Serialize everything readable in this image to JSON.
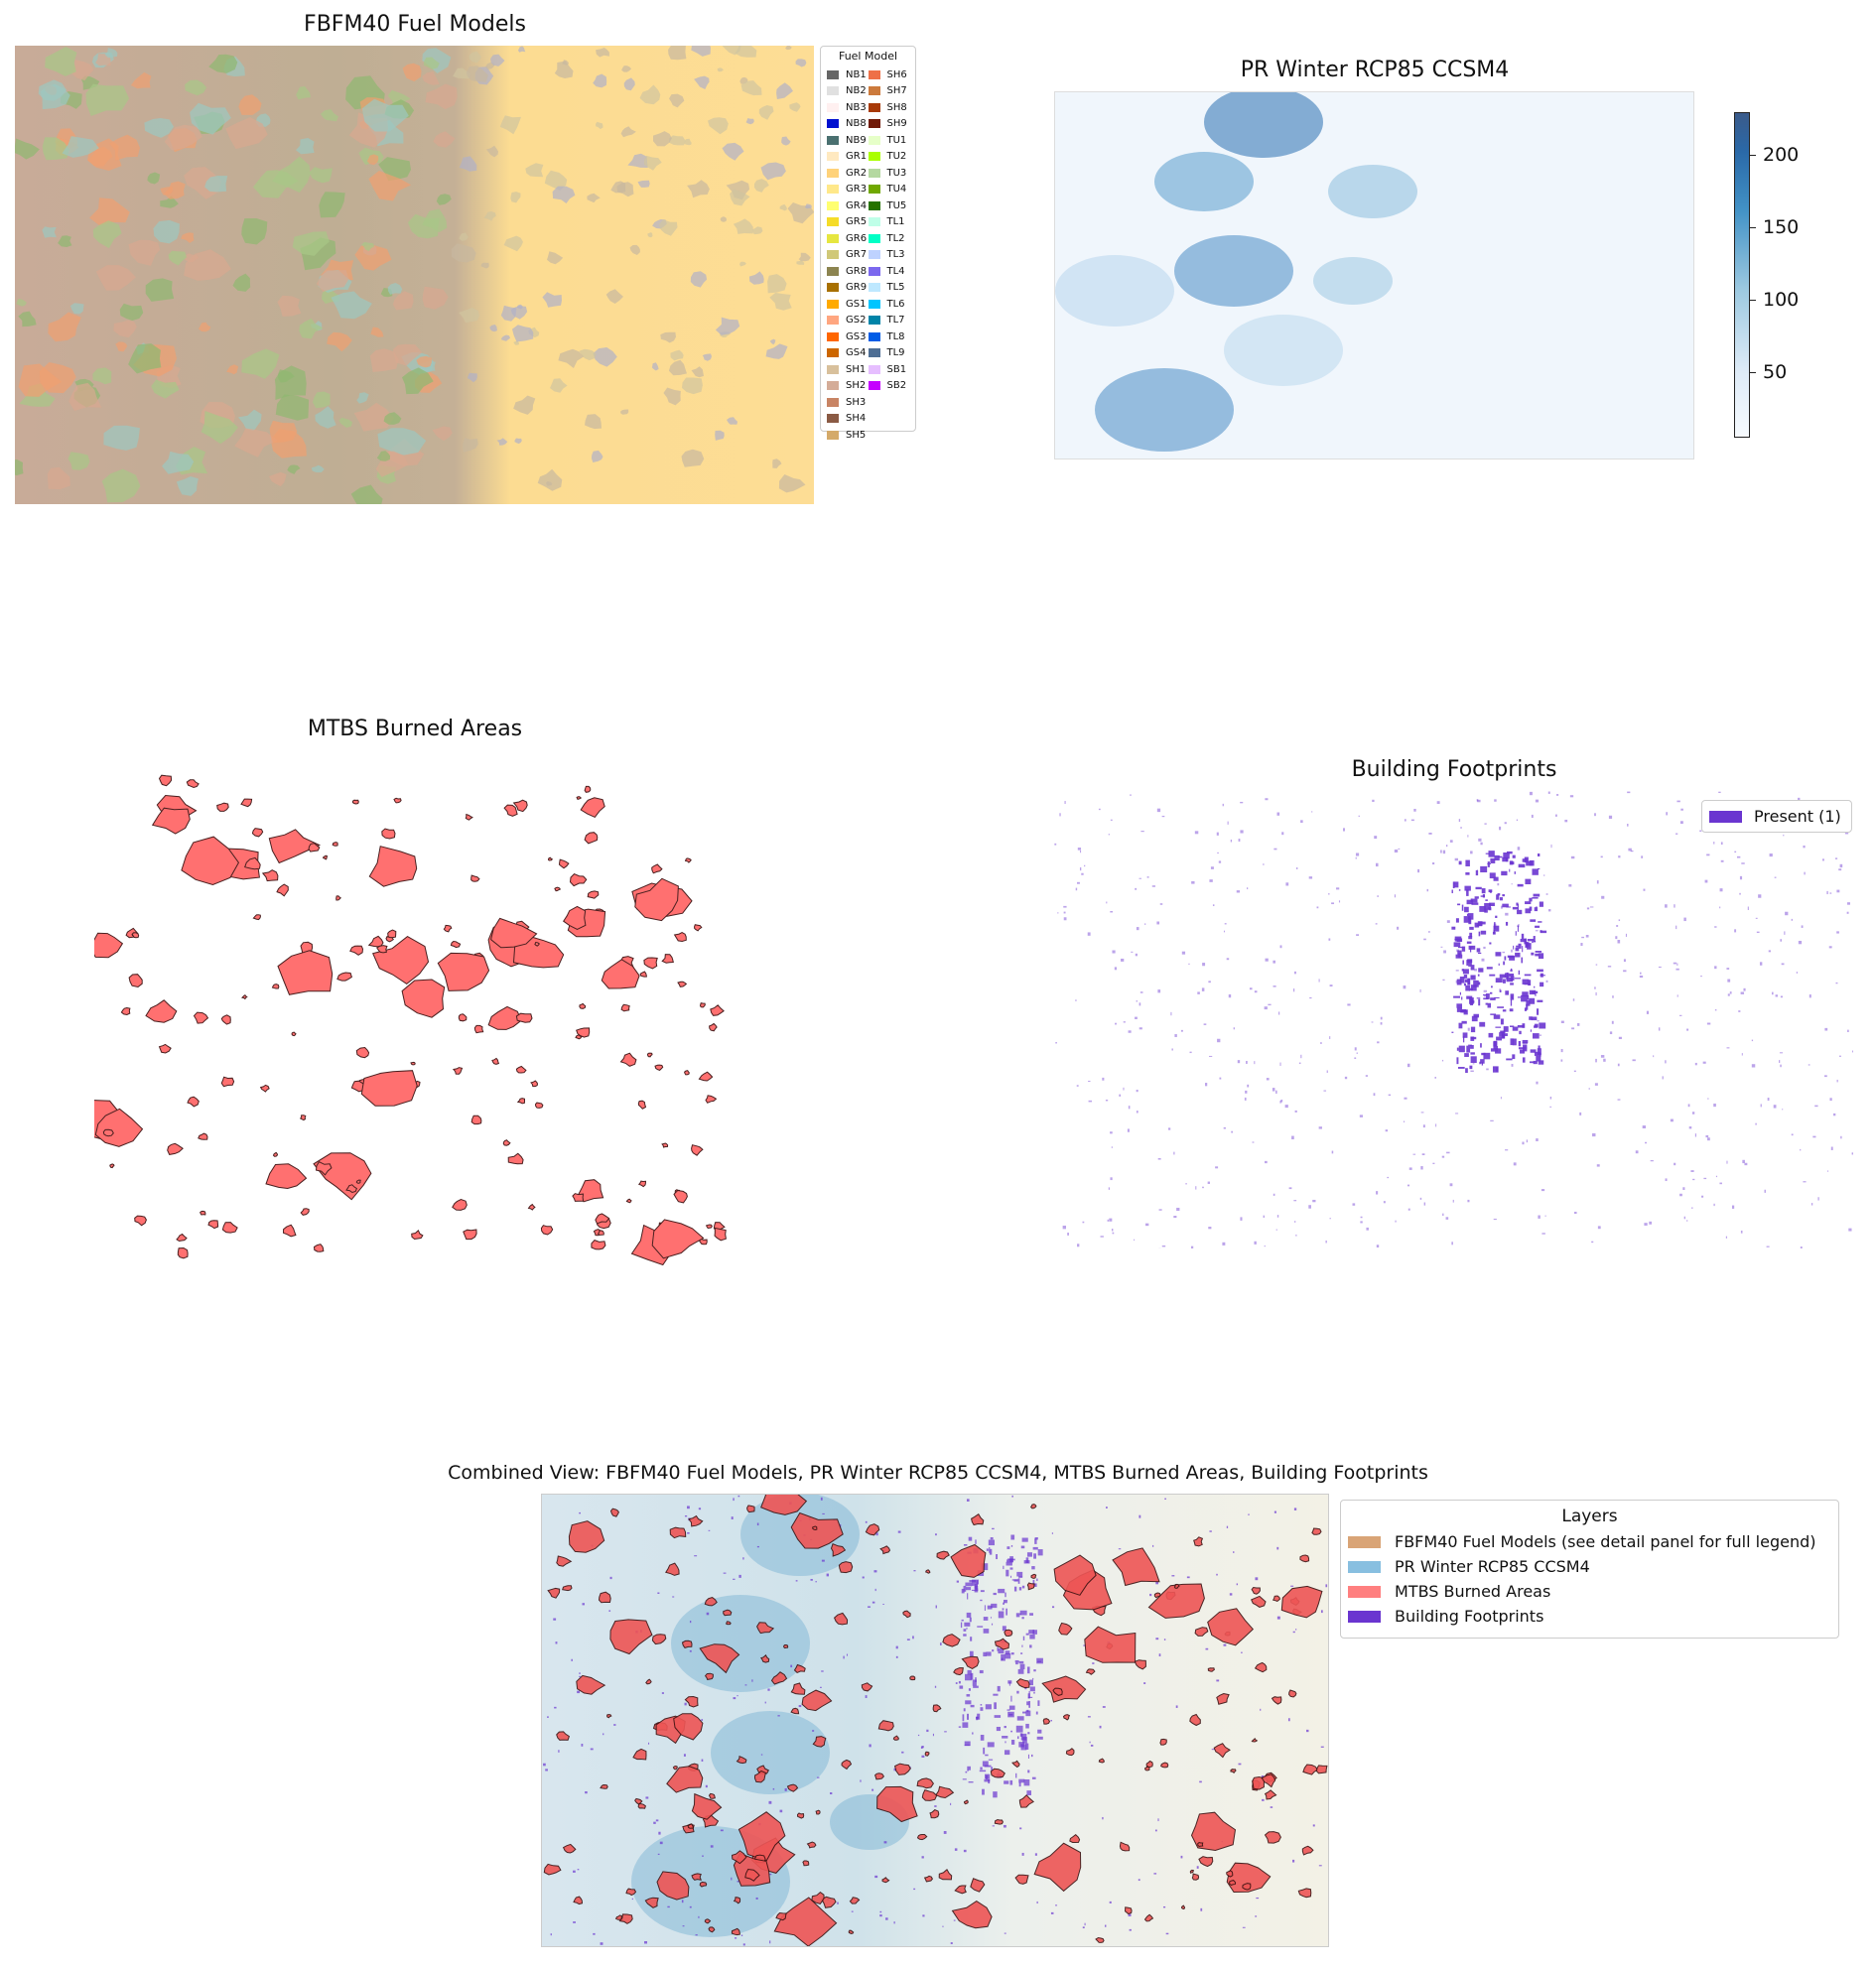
{
  "panels": {
    "fuel": {
      "title": "FBFM40 Fuel Models",
      "legend_title": "Fuel Model",
      "legend": [
        {
          "code": "NB1",
          "color": "#666666"
        },
        {
          "code": "NB2",
          "color": "#e0e0e0"
        },
        {
          "code": "NB3",
          "color": "#fff0f0"
        },
        {
          "code": "NB8",
          "color": "#0010d0"
        },
        {
          "code": "NB9",
          "color": "#4a7070"
        },
        {
          "code": "GR1",
          "color": "#ffe9c0"
        },
        {
          "code": "GR2",
          "color": "#ffd27a"
        },
        {
          "code": "GR3",
          "color": "#ffe88a"
        },
        {
          "code": "GR4",
          "color": "#ffff70"
        },
        {
          "code": "GR5",
          "color": "#f5dc28"
        },
        {
          "code": "GR6",
          "color": "#e6e640"
        },
        {
          "code": "GR7",
          "color": "#d0c878"
        },
        {
          "code": "GR8",
          "color": "#8c8450"
        },
        {
          "code": "GR9",
          "color": "#a87000"
        },
        {
          "code": "GS1",
          "color": "#ffaa00"
        },
        {
          "code": "GS2",
          "color": "#ffa680"
        },
        {
          "code": "GS3",
          "color": "#ff6600"
        },
        {
          "code": "GS4",
          "color": "#cc6600"
        },
        {
          "code": "SH1",
          "color": "#d8c09c"
        },
        {
          "code": "SH2",
          "color": "#d4ac98"
        },
        {
          "code": "SH3",
          "color": "#c88464"
        },
        {
          "code": "SH4",
          "color": "#8a5a44"
        },
        {
          "code": "SH5",
          "color": "#d4aa6a"
        },
        {
          "code": "SH6",
          "color": "#ee7048"
        },
        {
          "code": "SH7",
          "color": "#cc7a3c"
        },
        {
          "code": "SH8",
          "color": "#a83a08"
        },
        {
          "code": "SH9",
          "color": "#701a08"
        },
        {
          "code": "TU1",
          "color": "#e6ffc8"
        },
        {
          "code": "TU2",
          "color": "#aaff00"
        },
        {
          "code": "TU3",
          "color": "#b4d8a0"
        },
        {
          "code": "TU4",
          "color": "#70a800"
        },
        {
          "code": "TU5",
          "color": "#267300"
        },
        {
          "code": "TL1",
          "color": "#bfffe8"
        },
        {
          "code": "TL2",
          "color": "#00ffc5"
        },
        {
          "code": "TL3",
          "color": "#bed2ff"
        },
        {
          "code": "TL4",
          "color": "#7b68ee"
        },
        {
          "code": "TL5",
          "color": "#bee8ff"
        },
        {
          "code": "TL6",
          "color": "#00c5ff"
        },
        {
          "code": "TL7",
          "color": "#0084a8"
        },
        {
          "code": "TL8",
          "color": "#005ce6"
        },
        {
          "code": "TL9",
          "color": "#4e6e94"
        },
        {
          "code": "SB1",
          "color": "#e6beff"
        },
        {
          "code": "SB2",
          "color": "#c500ff"
        }
      ]
    },
    "precip": {
      "title": "PR Winter RCP85 CCSM4",
      "colormap": "Blues",
      "range": [
        7,
        230
      ],
      "ticks": [
        "50",
        "100",
        "150",
        "200"
      ]
    },
    "mtbs": {
      "title": "MTBS Burned Areas",
      "fill_color": "#ff7070"
    },
    "buildings": {
      "title": "Building Footprints",
      "legend_label": "Present (1)",
      "color": "#6a35d0"
    },
    "combined": {
      "title": "Combined View: FBFM40 Fuel Models, PR Winter RCP85 CCSM4, MTBS Burned Areas, Building Footprints",
      "legend_title": "Layers",
      "legend": [
        {
          "label": "FBFM40 Fuel Models (see detail panel for full legend)",
          "color": "#d9a476"
        },
        {
          "label": "PR Winter RCP85 CCSM4",
          "color": "#88bfe0"
        },
        {
          "label": "MTBS Burned Areas",
          "color": "#ff7f7f"
        },
        {
          "label": "Building Footprints",
          "color": "#6a35d0"
        }
      ]
    }
  }
}
